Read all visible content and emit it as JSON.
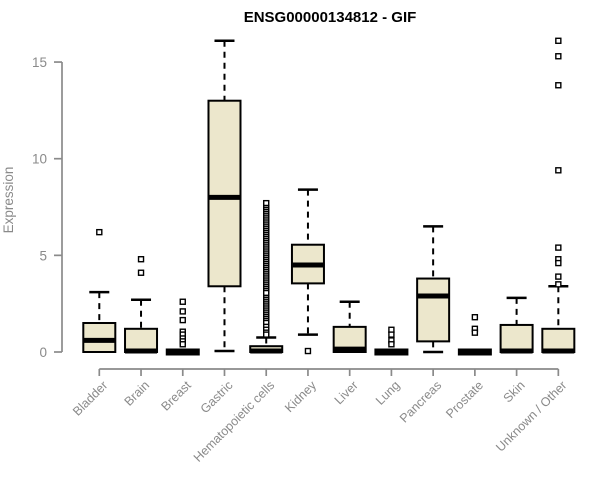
{
  "chart_data": {
    "type": "boxplot",
    "title": "ENSG00000134812 - GIF",
    "xlabel": "",
    "ylabel": "Expression",
    "yticks": [
      0,
      5,
      10,
      15
    ],
    "ylim": [
      -0.3,
      16.5
    ],
    "grid": false,
    "legend": "none",
    "categories": [
      "Bladder",
      "Brain",
      "Breast",
      "Gastric",
      "Hematopoietic cells",
      "Kidney",
      "Liver",
      "Lung",
      "Pancreas",
      "Prostate",
      "Skin",
      "Unknown / Other"
    ],
    "boxes": [
      {
        "category": "Bladder",
        "whisker_low": 0,
        "q1": 0,
        "median": 0.6,
        "q3": 1.5,
        "whisker_high": 3.1,
        "outliers": [
          6.2
        ]
      },
      {
        "category": "Brain",
        "whisker_low": 0,
        "q1": 0,
        "median": 0.05,
        "q3": 1.2,
        "whisker_high": 2.7,
        "outliers": [
          4.8,
          4.1
        ]
      },
      {
        "category": "Breast",
        "whisker_low": 0,
        "q1": 0,
        "median": 0,
        "q3": 0,
        "whisker_high": 0,
        "outliers": [
          2.6,
          2.1,
          1.65,
          1.05,
          0.9,
          0.7,
          0.55,
          0.4
        ]
      },
      {
        "category": "Gastric",
        "whisker_low": 0.05,
        "q1": 3.4,
        "median": 8.0,
        "q3": 13.0,
        "whisker_high": 16.1,
        "outliers": []
      },
      {
        "category": "Hematopoietic cells",
        "whisker_low": 0,
        "q1": 0,
        "median": 0.05,
        "q3": 0.3,
        "whisker_high": 0.75,
        "outliers": [
          7.7,
          7.45,
          7.35,
          7.25,
          7.15,
          7.05,
          6.95,
          6.85,
          6.75,
          6.65,
          6.55,
          6.45,
          6.35,
          6.25,
          6.15,
          6.05,
          5.95,
          5.85,
          5.75,
          5.65,
          5.55,
          5.45,
          5.35,
          5.25,
          5.15,
          5.05,
          4.95,
          4.85,
          4.75,
          4.65,
          4.55,
          4.45,
          4.35,
          4.25,
          4.15,
          4.05,
          3.95,
          3.85,
          3.75,
          3.65,
          3.55,
          3.45,
          3.35,
          3.25,
          3.15,
          3.05,
          2.8,
          2.7,
          2.6,
          2.5,
          2.4,
          2.3,
          2.2,
          2.1,
          2.0,
          1.9,
          1.8,
          1.7,
          1.6,
          1.5,
          1.3,
          1.15,
          1.0,
          0.9
        ]
      },
      {
        "category": "Kidney",
        "whisker_low": 0.9,
        "q1": 3.55,
        "median": 4.5,
        "q3": 5.55,
        "whisker_high": 8.4,
        "outliers": [
          0.05
        ]
      },
      {
        "category": "Liver",
        "whisker_low": 0,
        "q1": 0,
        "median": 0.15,
        "q3": 1.3,
        "whisker_high": 2.6,
        "outliers": []
      },
      {
        "category": "Lung",
        "whisker_low": 0,
        "q1": 0,
        "median": 0,
        "q3": 0,
        "whisker_high": 0,
        "outliers": [
          1.15,
          0.9,
          0.6,
          0.4
        ]
      },
      {
        "category": "Pancreas",
        "whisker_low": 0,
        "q1": 0.55,
        "median": 2.9,
        "q3": 3.8,
        "whisker_high": 6.5,
        "outliers": []
      },
      {
        "category": "Prostate",
        "whisker_low": 0,
        "q1": 0,
        "median": 0,
        "q3": 0,
        "whisker_high": 0,
        "outliers": [
          1.8,
          1.2,
          1.0
        ]
      },
      {
        "category": "Skin",
        "whisker_low": 0,
        "q1": 0,
        "median": 0.05,
        "q3": 1.4,
        "whisker_high": 2.8,
        "outliers": []
      },
      {
        "category": "Unknown / Other",
        "whisker_low": 0,
        "q1": 0,
        "median": 0.05,
        "q3": 1.2,
        "whisker_high": 3.4,
        "outliers": [
          16.1,
          15.3,
          13.8,
          9.4,
          5.4,
          4.8,
          4.6,
          3.9,
          3.5
        ]
      }
    ]
  },
  "colors": {
    "background": "#ffffff",
    "box_fill": "#ece7cc",
    "box_border": "#000000",
    "median": "#000000",
    "outlier_fill": "#ffffff",
    "axis": "#8a8a8a",
    "tick_text": "#8a8a8a",
    "title_text": "#000000"
  }
}
